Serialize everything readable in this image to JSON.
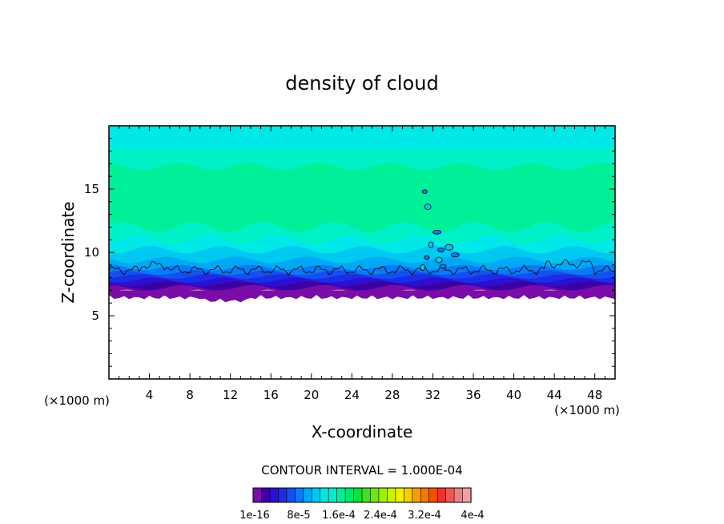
{
  "chart_data": {
    "type": "heatmap",
    "title": "density of cloud",
    "xlabel": "X-coordinate",
    "ylabel": "Z-coordinate",
    "x_unit_left": "(×1000 m)",
    "x_unit_right": "(×1000 m)",
    "xlim": [
      0,
      50
    ],
    "ylim": [
      0,
      20
    ],
    "x_ticks": [
      4,
      8,
      12,
      16,
      20,
      24,
      28,
      32,
      36,
      40,
      44,
      48
    ],
    "y_ticks": [
      5,
      10,
      15
    ],
    "cloud_base_km": 7,
    "cloud_top_km": 20,
    "contour_interval": "CONTOUR INTERVAL = 1.000E-04",
    "colorbar_labels": [
      "1e-16",
      "8e-5",
      "1.6e-4",
      "2.4e-4",
      "3.2e-4",
      "4e-4"
    ],
    "colorbar_colors": [
      "#7a0ca8",
      "#3d00a0",
      "#2c0fd0",
      "#1a2ee6",
      "#1450f0",
      "#0a7af5",
      "#00a8f5",
      "#00c8f0",
      "#00e8e8",
      "#00f0c8",
      "#00f09a",
      "#00e86a",
      "#10e040",
      "#40e020",
      "#70e810",
      "#a0f000",
      "#d0f000",
      "#f0f000",
      "#f5d000",
      "#f5a000",
      "#f57800",
      "#f55000",
      "#f03030",
      "#f05858",
      "#f08080",
      "#f0a0a0"
    ],
    "layers": [
      {
        "z_bottom": 6.8,
        "z_top": 7.2,
        "color": "#7a0ca8"
      },
      {
        "z_bottom": 7.2,
        "z_top": 7.5,
        "color": "#3d00a0"
      },
      {
        "z_bottom": 7.5,
        "z_top": 7.8,
        "color": "#2c0fd0"
      },
      {
        "z_bottom": 7.8,
        "z_top": 8.1,
        "color": "#1a2ee6"
      },
      {
        "z_bottom": 8.1,
        "z_top": 8.4,
        "color": "#1450f0"
      },
      {
        "z_bottom": 8.4,
        "z_top": 8.8,
        "color": "#0a7af5"
      },
      {
        "z_bottom": 8.8,
        "z_top": 9.4,
        "color": "#00a8f5"
      },
      {
        "z_bottom": 9.4,
        "z_top": 10.2,
        "color": "#00c8f0"
      },
      {
        "z_bottom": 10.2,
        "z_top": 11.0,
        "color": "#00e8e8"
      },
      {
        "z_bottom": 11.0,
        "z_top": 12.0,
        "color": "#00f0c8"
      },
      {
        "z_bottom": 12.0,
        "z_top": 16.8,
        "color": "#00f09a"
      },
      {
        "z_bottom": 16.8,
        "z_top": 18.3,
        "color": "#00f0c8"
      },
      {
        "z_bottom": 18.3,
        "z_top": 20.0,
        "color": "#00e8e8"
      }
    ]
  }
}
